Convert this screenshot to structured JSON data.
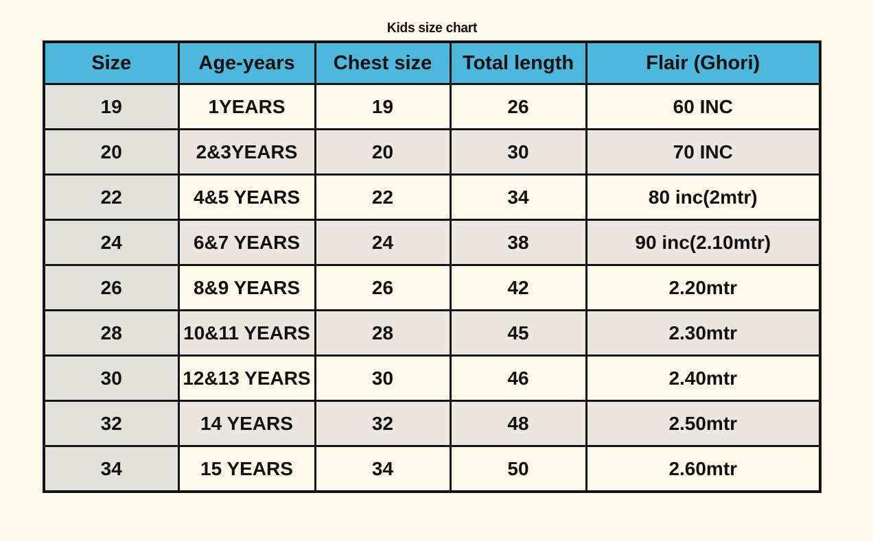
{
  "page": {
    "title": "Kids size chart",
    "background": "#fdfaec"
  },
  "chart_data": {
    "type": "table",
    "title": "Kids size chart",
    "columns": [
      "Size",
      "Age-years",
      "Chest size",
      "Total length",
      "Flair  (Ghori)"
    ],
    "rows": [
      [
        "19",
        "1YEARS",
        "19",
        "26",
        "60 INC"
      ],
      [
        "20",
        "2&3YEARS",
        "20",
        "30",
        "70 INC"
      ],
      [
        "22",
        "4&5 YEARS",
        "22",
        "34",
        "80 inc(2mtr)"
      ],
      [
        "24",
        "6&7 YEARS",
        "24",
        "38",
        "90 inc(2.10mtr)"
      ],
      [
        "26",
        "8&9 YEARS",
        "26",
        "42",
        "2.20mtr"
      ],
      [
        "28",
        "10&11 YEARS",
        "28",
        "45",
        "2.30mtr"
      ],
      [
        "30",
        "12&13 YEARS",
        "30",
        "46",
        "2.40mtr"
      ],
      [
        "32",
        "14 YEARS",
        "32",
        "48",
        "2.50mtr"
      ],
      [
        "34",
        "15 YEARS",
        "34",
        "50",
        "2.60mtr"
      ]
    ],
    "layout": {
      "grid": true,
      "header_row": true,
      "alternating_row_shading": true
    }
  },
  "style": {
    "header_bg": "#4db8dc",
    "border_color": "#121212",
    "size_col_bg": "#e2e1dc",
    "row_odd_bg": "#fdfaea",
    "row_even_bg": "#ece6e0",
    "page_bg": "#fdfaec",
    "text_color": "#111111"
  }
}
